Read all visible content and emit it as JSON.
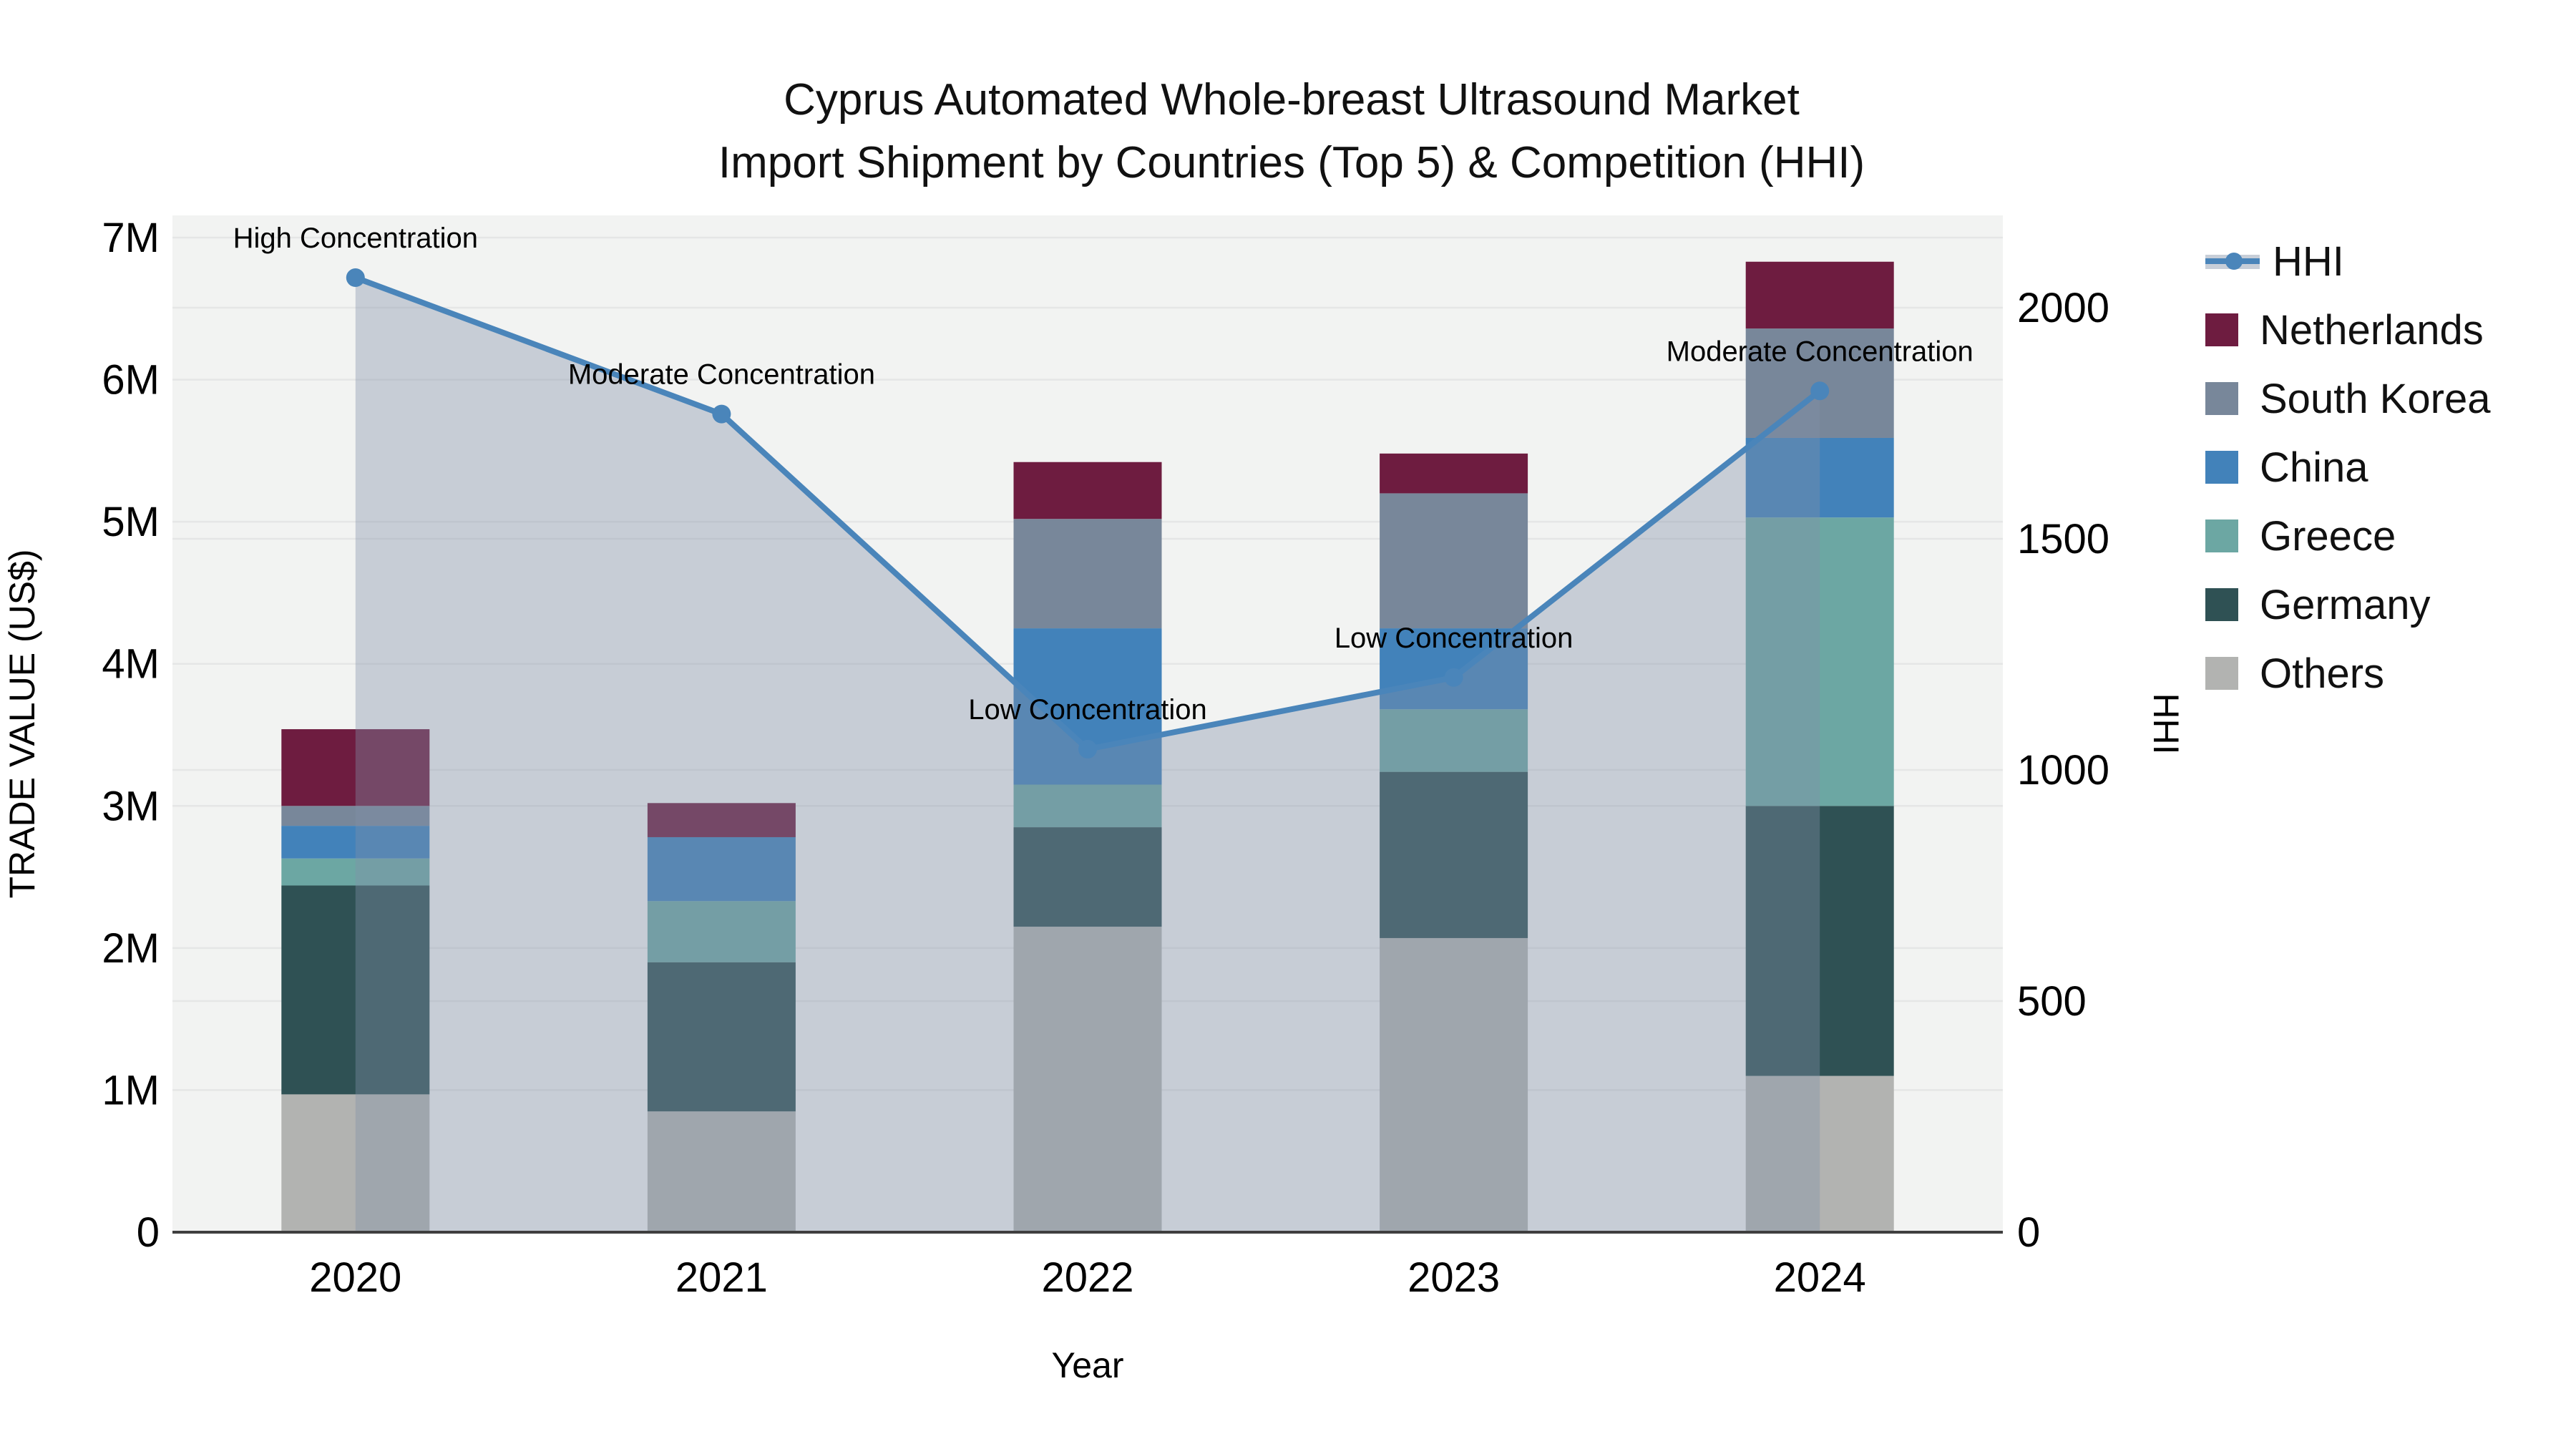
{
  "title": {
    "line1": "Cyprus Automated Whole-breast Ultrasound Market",
    "line2": "Import Shipment by Countries (Top 5) & Competition (HHI)"
  },
  "axes": {
    "left": {
      "title": "TRADE VALUE (US$)",
      "ticks": [
        "0",
        "1M",
        "2M",
        "3M",
        "4M",
        "5M",
        "6M",
        "7M"
      ],
      "tick_values_millions": [
        0,
        1,
        2,
        3,
        4,
        5,
        6,
        7
      ]
    },
    "right": {
      "title": "HHI",
      "ticks": [
        "0",
        "500",
        "1000",
        "1500",
        "2000"
      ],
      "tick_values": [
        0,
        500,
        1000,
        1500,
        2000
      ]
    },
    "x": {
      "title": "Year",
      "categories": [
        "2020",
        "2021",
        "2022",
        "2023",
        "2024"
      ]
    }
  },
  "legend": {
    "items": [
      {
        "label": "HHI",
        "type": "line",
        "color": "#4a85ba"
      },
      {
        "label": "Netherlands",
        "type": "swatch",
        "color": "#6e1c40"
      },
      {
        "label": "South Korea",
        "type": "swatch",
        "color": "#78879a"
      },
      {
        "label": "China",
        "type": "swatch",
        "color": "#4282ba"
      },
      {
        "label": "Greece",
        "type": "swatch",
        "color": "#6ca7a3"
      },
      {
        "label": "Germany",
        "type": "swatch",
        "color": "#2f5154"
      },
      {
        "label": "Others",
        "type": "swatch",
        "color": "#b2b3b1"
      }
    ]
  },
  "chart_data": {
    "type": "bar",
    "subtype": "stacked bars + HHI line with area fill, dual y-axes",
    "categories": [
      "2020",
      "2021",
      "2022",
      "2023",
      "2024"
    ],
    "bar_value_unit": "US$ millions",
    "series": [
      {
        "name": "Others",
        "color": "#b2b3b1",
        "values": [
          0.97,
          0.85,
          2.15,
          2.07,
          1.1
        ]
      },
      {
        "name": "Germany",
        "color": "#2f5154",
        "values": [
          1.47,
          1.05,
          0.7,
          1.17,
          1.9
        ]
      },
      {
        "name": "Greece",
        "color": "#6ca7a3",
        "values": [
          0.19,
          0.43,
          0.3,
          0.44,
          2.03
        ]
      },
      {
        "name": "China",
        "color": "#4282ba",
        "values": [
          0.23,
          0.45,
          1.1,
          0.57,
          0.56
        ]
      },
      {
        "name": "South Korea",
        "color": "#78879a",
        "values": [
          0.14,
          0.0,
          0.77,
          0.95,
          0.77
        ]
      },
      {
        "name": "Netherlands",
        "color": "#6e1c40",
        "values": [
          0.54,
          0.24,
          0.4,
          0.28,
          0.47
        ]
      }
    ],
    "bar_totals_millions": [
      3.54,
      3.02,
      5.42,
      5.48,
      6.83
    ],
    "hhi": {
      "name": "HHI",
      "color": "#4a85ba",
      "area_fill": "rgba(130,144,168,0.38)",
      "values": [
        2065,
        1770,
        1045,
        1200,
        1820
      ]
    },
    "annotations": [
      {
        "category": "2020",
        "text": "High Concentration"
      },
      {
        "category": "2021",
        "text": "Moderate Concentration"
      },
      {
        "category": "2022",
        "text": "Low Concentration"
      },
      {
        "category": "2023",
        "text": "Low Concentration"
      },
      {
        "category": "2024",
        "text": "Moderate Concentration"
      }
    ],
    "ylim_left_millions": [
      0,
      7
    ],
    "ylim_right": [
      0,
      2170
    ],
    "grid": true,
    "legend_position": "right"
  }
}
